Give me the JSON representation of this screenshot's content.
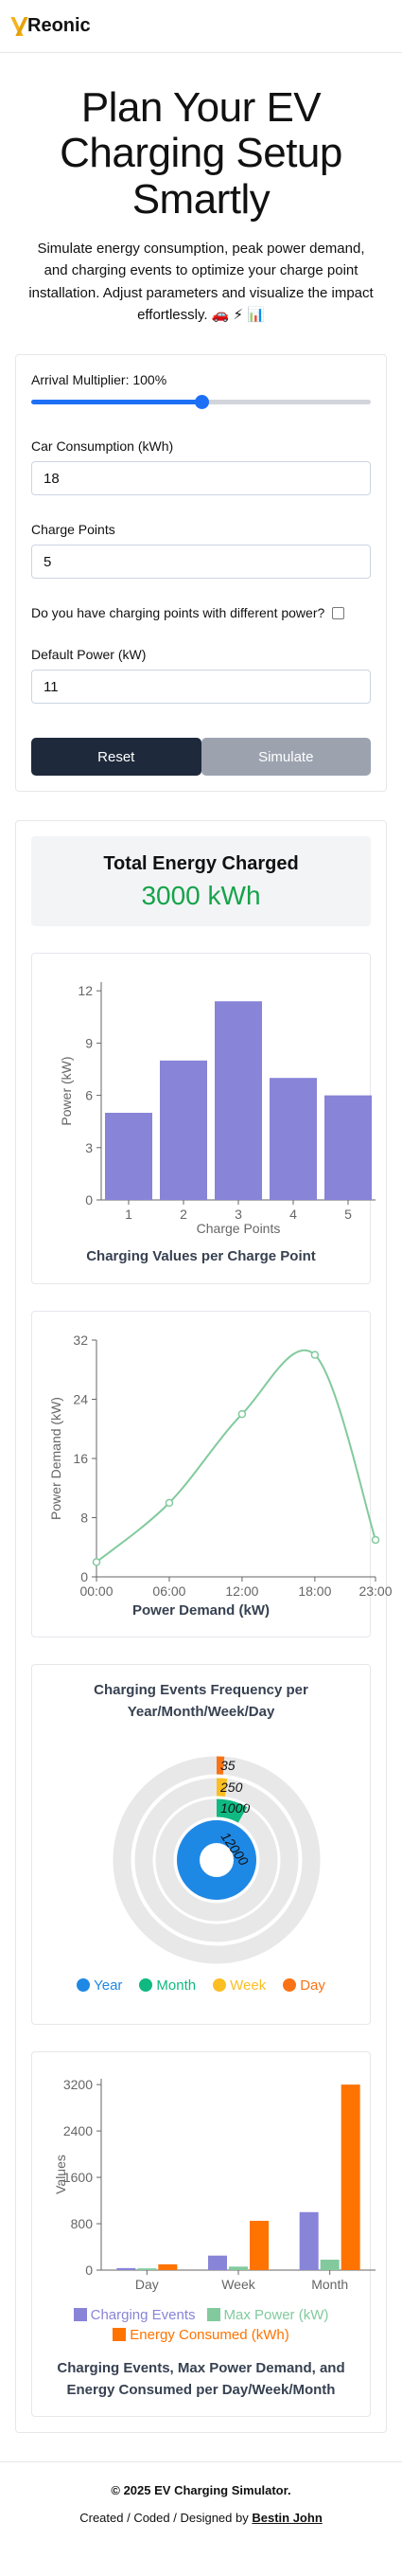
{
  "brand": {
    "name": "Reonic"
  },
  "hero": {
    "title": "Plan Your EV Charging Setup Smartly",
    "description": "Simulate energy consumption, peak power demand, and charging events to optimize your charge point installation. Adjust parameters and visualize the impact effortlessly. 🚗 ⚡ 📊"
  },
  "form": {
    "arrival_label": "Arrival Multiplier: 100%",
    "arrival_level": 0.5,
    "car_consumption_label": "Car Consumption (kWh)",
    "car_consumption_value": "18",
    "charge_points_label": "Charge Points",
    "charge_points_value": "5",
    "different_power_label": "Do you have charging points with different power?",
    "default_power_label": "Default Power (kW)",
    "default_power_value": "11",
    "reset_label": "Reset",
    "simulate_label": "Simulate"
  },
  "summary": {
    "title": "Total Energy Charged",
    "value": "3000 kWh"
  },
  "chart_data": [
    {
      "type": "bar",
      "title": "Charging Values per Charge Point",
      "xlabel": "Charge Points",
      "ylabel": "Power (kW)",
      "categories": [
        "1",
        "2",
        "3",
        "4",
        "5"
      ],
      "values": [
        5,
        8,
        11.4,
        7,
        6
      ],
      "ylim": [
        0,
        12.5
      ],
      "yticks": [
        0,
        3,
        6,
        9,
        12
      ],
      "color": "#8884d8"
    },
    {
      "type": "line",
      "title": "Power Demand (kW)",
      "ylabel": "Power Demand (kW)",
      "x": [
        "00:00",
        "06:00",
        "12:00",
        "18:00",
        "23:00"
      ],
      "x_hours": [
        0,
        6,
        12,
        18,
        23
      ],
      "points": [
        {
          "h": 0,
          "v": 2
        },
        {
          "h": 6,
          "v": 10
        },
        {
          "h": 12,
          "v": 22
        },
        {
          "h": 18,
          "v": 30
        },
        {
          "h": 23,
          "v": 5
        }
      ],
      "ylim": [
        0,
        32
      ],
      "yticks": [
        0,
        8,
        16,
        24,
        32
      ],
      "color": "#82ca9d"
    },
    {
      "type": "radial-bar",
      "title": "Charging Events Frequency per Year/Month/Week/Day",
      "series": [
        {
          "name": "Year",
          "value": 12000,
          "color": "#1e88e5"
        },
        {
          "name": "Month",
          "value": 1000,
          "color": "#10b981"
        },
        {
          "name": "Week",
          "value": 250,
          "color": "#fbbf24"
        },
        {
          "name": "Day",
          "value": 35,
          "color": "#f97316"
        }
      ]
    },
    {
      "type": "bar",
      "title": "Charging Events, Max Power Demand, and Energy Consumed per Day/Week/Month",
      "ylabel": "Values",
      "categories": [
        "Day",
        "Week",
        "Month"
      ],
      "ylim": [
        0,
        3300
      ],
      "yticks": [
        0,
        800,
        1600,
        2400,
        3200
      ],
      "series": [
        {
          "name": "Charging Events",
          "values": [
            35,
            250,
            1000
          ],
          "color": "#8884d8"
        },
        {
          "name": "Max Power (kW)",
          "values": [
            30,
            60,
            180
          ],
          "color": "#82ca9d"
        },
        {
          "name": "Energy Consumed (kWh)",
          "values": [
            100,
            850,
            3200
          ],
          "color": "#ff7300"
        }
      ]
    }
  ],
  "footer": {
    "copyright": "© 2025 EV Charging Simulator.",
    "credit_prefix": "Created / Coded / Designed by",
    "credit_name": "Bestin John"
  }
}
